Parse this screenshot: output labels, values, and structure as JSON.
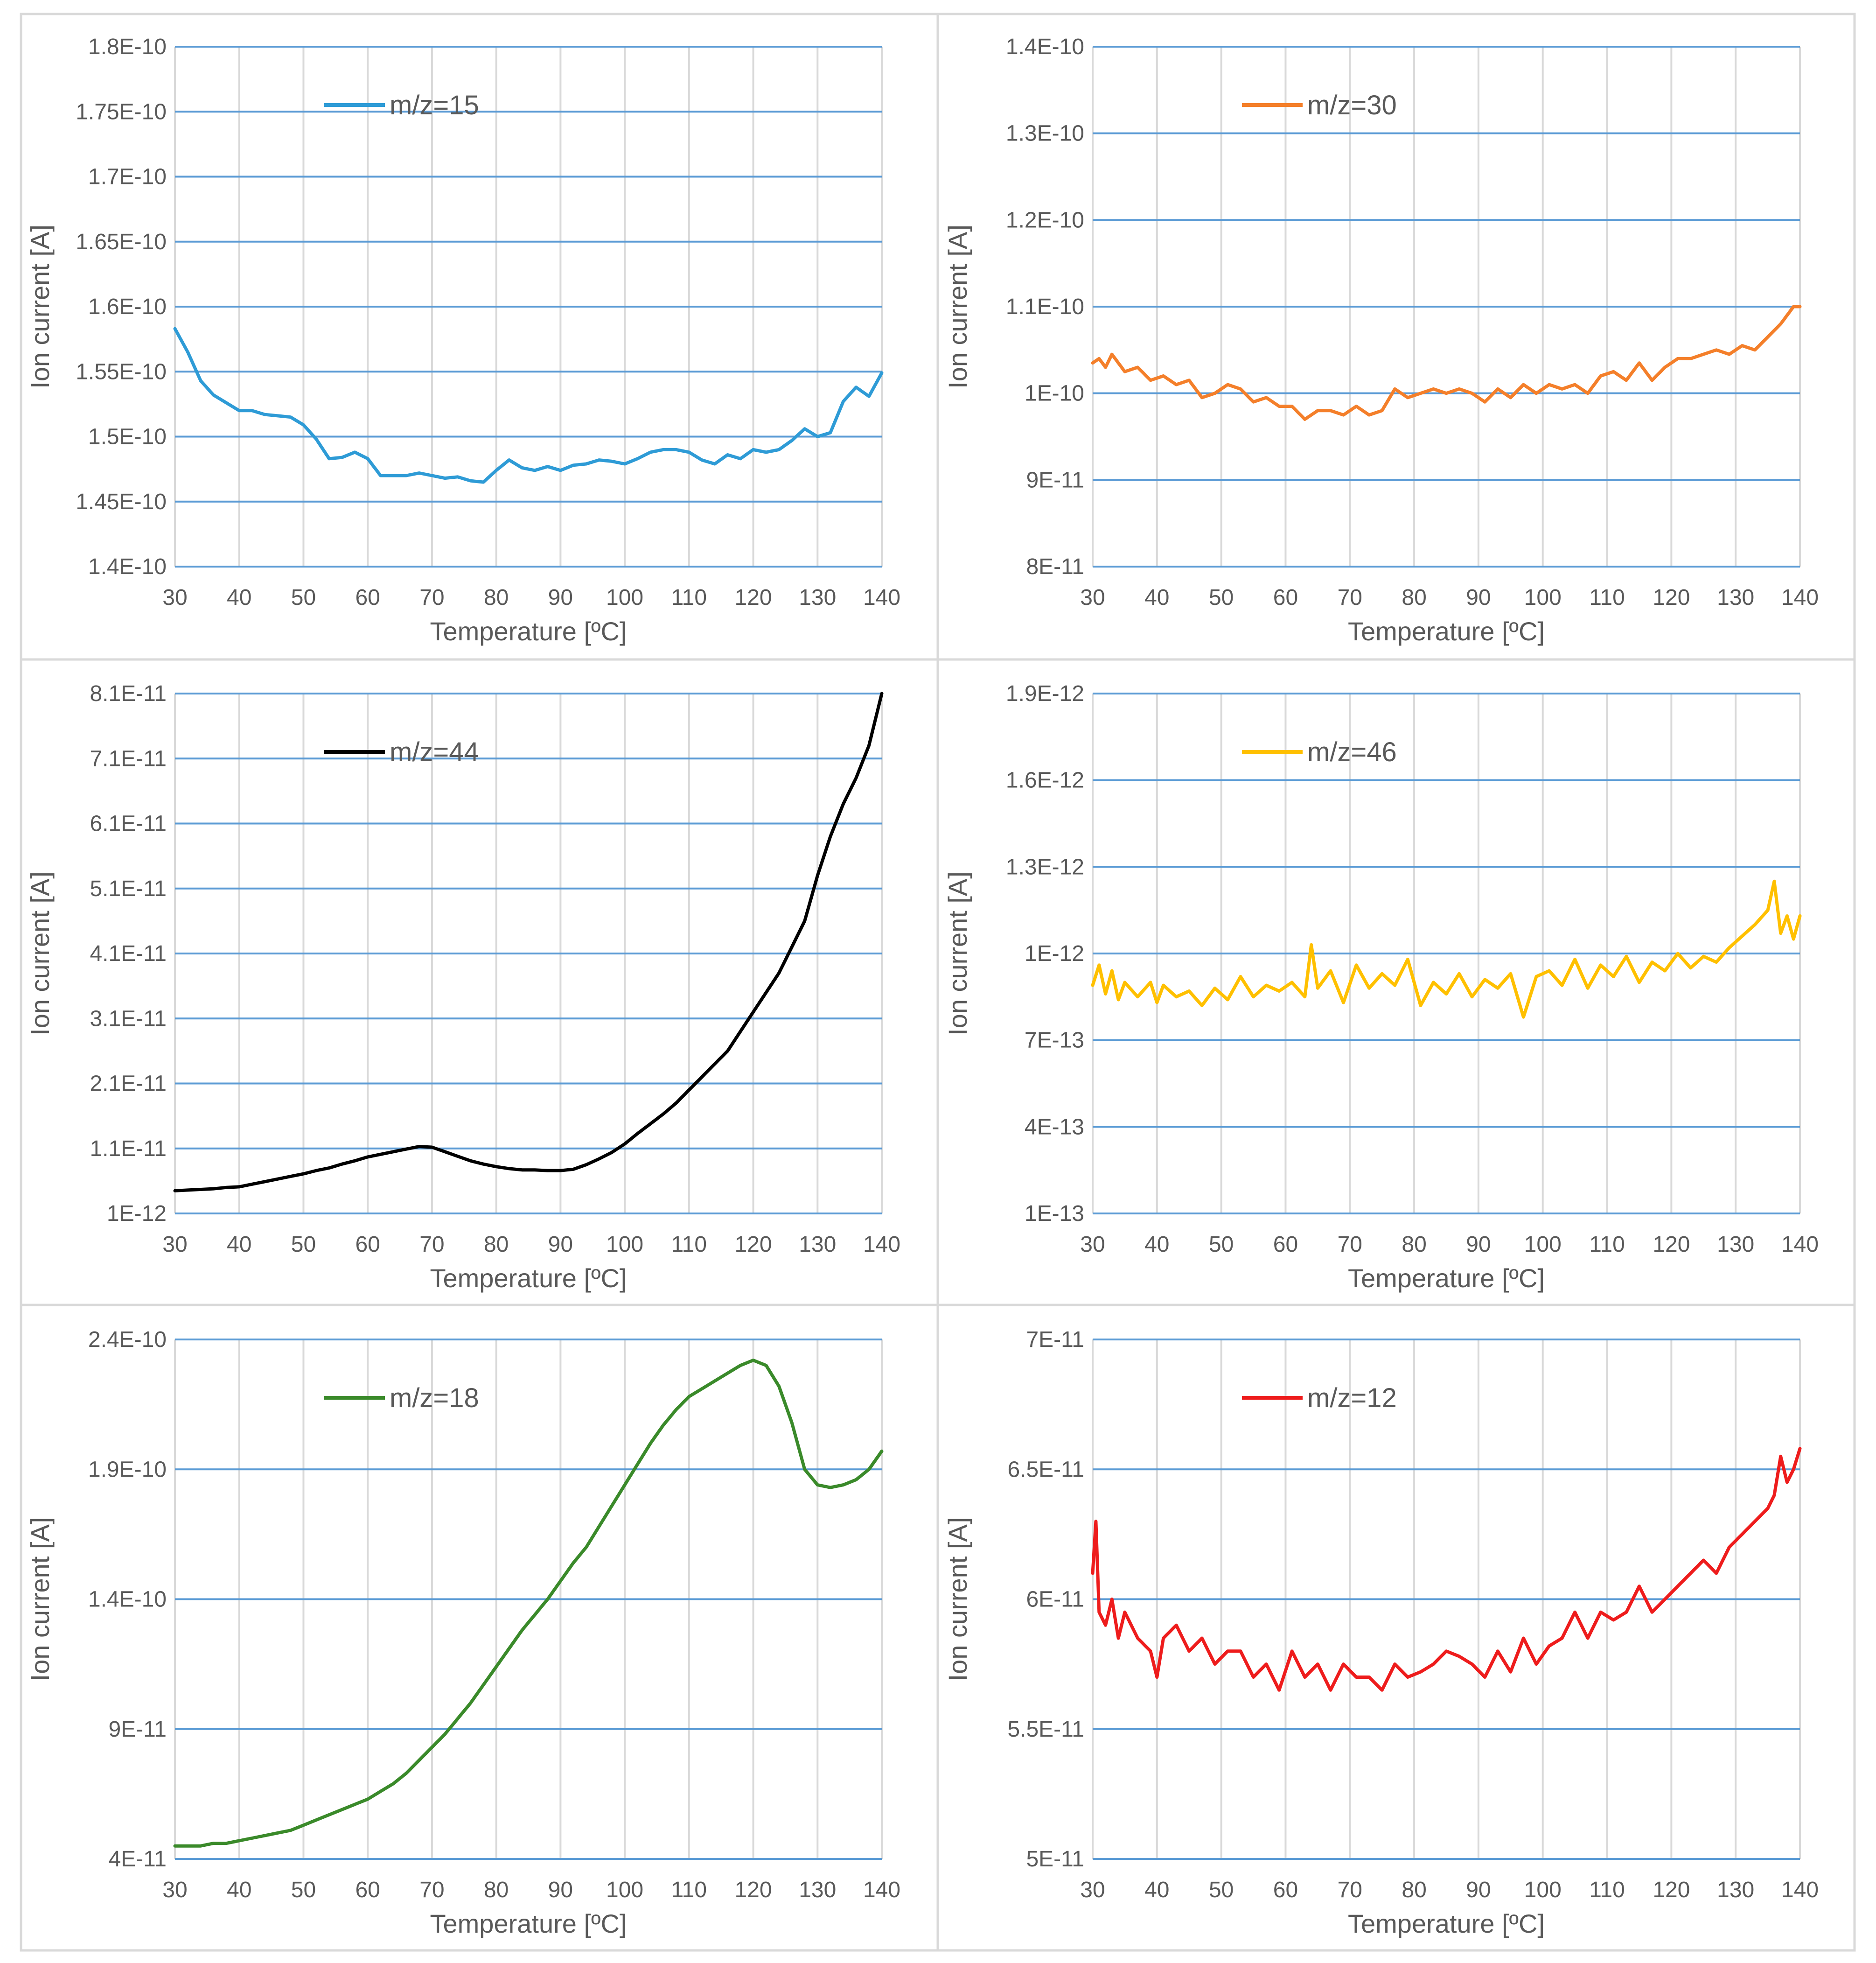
{
  "chart_data": [
    {
      "type": "line",
      "name": "m/z=15",
      "color": "#2e9bd6",
      "xlabel": "Temperature [ºC]",
      "ylabel": "Ion current [A]",
      "xlim": [
        30,
        140
      ],
      "ylim": [
        1.4e-10,
        1.8e-10
      ],
      "yticks": [
        1.4e-10,
        1.45e-10,
        1.5e-10,
        1.55e-10,
        1.6e-10,
        1.65e-10,
        1.7e-10,
        1.75e-10,
        1.8e-10
      ],
      "ytick_labels": [
        "1.4E-10",
        "1.45E-10",
        "1.5E-10",
        "1.55E-10",
        "1.6E-10",
        "1.65E-10",
        "1.7E-10",
        "1.75E-10",
        "1.8E-10"
      ],
      "xticks": [
        30,
        40,
        50,
        60,
        70,
        80,
        90,
        100,
        110,
        120,
        130,
        140
      ],
      "xtick_labels": [
        "30",
        "40",
        "50",
        "60",
        "70",
        "80",
        "90",
        "100",
        "110",
        "120",
        "130",
        "140"
      ],
      "x": [
        30,
        32,
        34,
        36,
        38,
        40,
        42,
        44,
        46,
        48,
        50,
        52,
        54,
        56,
        58,
        60,
        62,
        64,
        66,
        68,
        70,
        72,
        74,
        76,
        78,
        80,
        82,
        84,
        86,
        88,
        90,
        92,
        94,
        96,
        98,
        100,
        102,
        104,
        106,
        108,
        110,
        112,
        114,
        116,
        118,
        120,
        122,
        124,
        126,
        128,
        130,
        132,
        134,
        136,
        138,
        140
      ],
      "y": [
        1.583e-10,
        1.565e-10,
        1.543e-10,
        1.532e-10,
        1.526e-10,
        1.52e-10,
        1.52e-10,
        1.517e-10,
        1.516e-10,
        1.515e-10,
        1.509e-10,
        1.498e-10,
        1.483e-10,
        1.484e-10,
        1.488e-10,
        1.483e-10,
        1.47e-10,
        1.47e-10,
        1.47e-10,
        1.472e-10,
        1.47e-10,
        1.468e-10,
        1.469e-10,
        1.466e-10,
        1.465e-10,
        1.474e-10,
        1.482e-10,
        1.476e-10,
        1.474e-10,
        1.477e-10,
        1.474e-10,
        1.478e-10,
        1.479e-10,
        1.482e-10,
        1.481e-10,
        1.479e-10,
        1.483e-10,
        1.488e-10,
        1.49e-10,
        1.49e-10,
        1.488e-10,
        1.482e-10,
        1.479e-10,
        1.486e-10,
        1.483e-10,
        1.49e-10,
        1.488e-10,
        1.49e-10,
        1.497e-10,
        1.506e-10,
        1.5e-10,
        1.503e-10,
        1.527e-10,
        1.538e-10,
        1.531e-10,
        1.549e-10
      ]
    },
    {
      "type": "line",
      "name": "m/z=30",
      "color": "#f47f2a",
      "xlabel": "Temperature [ºC]",
      "ylabel": "Ion current [A]",
      "xlim": [
        30,
        140
      ],
      "ylim": [
        8e-11,
        1.4e-10
      ],
      "yticks": [
        8e-11,
        9e-11,
        1e-10,
        1.1e-10,
        1.2e-10,
        1.3e-10,
        1.4e-10
      ],
      "ytick_labels": [
        "8E-11",
        "9E-11",
        "1E-10",
        "1.1E-10",
        "1.2E-10",
        "1.3E-10",
        "1.4E-10"
      ],
      "xticks": [
        30,
        40,
        50,
        60,
        70,
        80,
        90,
        100,
        110,
        120,
        130,
        140
      ],
      "xtick_labels": [
        "30",
        "40",
        "50",
        "60",
        "70",
        "80",
        "90",
        "100",
        "110",
        "120",
        "130",
        "140"
      ],
      "x": [
        30,
        31,
        32,
        33,
        35,
        37,
        39,
        41,
        43,
        45,
        47,
        49,
        51,
        53,
        55,
        57,
        59,
        61,
        63,
        65,
        67,
        69,
        71,
        73,
        75,
        77,
        79,
        81,
        83,
        85,
        87,
        89,
        91,
        93,
        95,
        97,
        99,
        101,
        103,
        105,
        107,
        109,
        111,
        113,
        115,
        117,
        119,
        121,
        123,
        125,
        127,
        129,
        131,
        133,
        135,
        137,
        139,
        140
      ],
      "y": [
        1.035e-10,
        1.04e-10,
        1.03e-10,
        1.045e-10,
        1.025e-10,
        1.03e-10,
        1.015e-10,
        1.02e-10,
        1.01e-10,
        1.015e-10,
        9.95e-11,
        1e-10,
        1.01e-10,
        1.005e-10,
        9.9e-11,
        9.95e-11,
        9.85e-11,
        9.85e-11,
        9.7e-11,
        9.8e-11,
        9.8e-11,
        9.75e-11,
        9.85e-11,
        9.75e-11,
        9.8e-11,
        1.005e-10,
        9.95e-11,
        1e-10,
        1.005e-10,
        1e-10,
        1.005e-10,
        1e-10,
        9.9e-11,
        1.005e-10,
        9.95e-11,
        1.01e-10,
        1e-10,
        1.01e-10,
        1.005e-10,
        1.01e-10,
        1e-10,
        1.02e-10,
        1.025e-10,
        1.015e-10,
        1.035e-10,
        1.015e-10,
        1.03e-10,
        1.04e-10,
        1.04e-10,
        1.045e-10,
        1.05e-10,
        1.045e-10,
        1.055e-10,
        1.05e-10,
        1.065e-10,
        1.08e-10,
        1.1e-10,
        1.1e-10
      ]
    },
    {
      "type": "line",
      "name": "m/z=44",
      "color": "#000000",
      "xlabel": "Temperature [ºC]",
      "ylabel": "Ion current [A]",
      "xlim": [
        30,
        140
      ],
      "ylim": [
        1e-12,
        8.1e-11
      ],
      "yticks": [
        1e-12,
        1.1e-11,
        2.1e-11,
        3.1e-11,
        4.1e-11,
        5.1e-11,
        6.1e-11,
        7.1e-11,
        8.1e-11
      ],
      "ytick_labels": [
        "1E-12",
        "1.1E-11",
        "2.1E-11",
        "3.1E-11",
        "4.1E-11",
        "5.1E-11",
        "6.1E-11",
        "7.1E-11",
        "8.1E-11"
      ],
      "xticks": [
        30,
        40,
        50,
        60,
        70,
        80,
        90,
        100,
        110,
        120,
        130,
        140
      ],
      "xtick_labels": [
        "30",
        "40",
        "50",
        "60",
        "70",
        "80",
        "90",
        "100",
        "110",
        "120",
        "130",
        "140"
      ],
      "x": [
        30,
        32,
        34,
        36,
        38,
        40,
        42,
        44,
        46,
        48,
        50,
        52,
        54,
        56,
        58,
        60,
        62,
        64,
        66,
        68,
        70,
        72,
        74,
        76,
        78,
        80,
        82,
        84,
        86,
        88,
        90,
        92,
        94,
        96,
        98,
        100,
        102,
        104,
        106,
        108,
        110,
        112,
        114,
        116,
        118,
        120,
        122,
        124,
        126,
        128,
        130,
        132,
        134,
        136,
        138,
        140
      ],
      "y": [
        4.5e-12,
        4.6e-12,
        4.7e-12,
        4.8e-12,
        5e-12,
        5.1e-12,
        5.5e-12,
        5.9e-12,
        6.3e-12,
        6.7e-12,
        7.1e-12,
        7.6e-12,
        8e-12,
        8.6e-12,
        9.1e-12,
        9.7e-12,
        1.01e-11,
        1.05e-11,
        1.09e-11,
        1.13e-11,
        1.12e-11,
        1.05e-11,
        9.8e-12,
        9.1e-12,
        8.6e-12,
        8.2e-12,
        7.9e-12,
        7.7e-12,
        7.7e-12,
        7.6e-12,
        7.6e-12,
        7.8e-12,
        8.5e-12,
        9.4e-12,
        1.04e-11,
        1.17e-11,
        1.33e-11,
        1.48e-11,
        1.63e-11,
        1.8e-11,
        2e-11,
        2.2e-11,
        2.4e-11,
        2.6e-11,
        2.9e-11,
        3.2e-11,
        3.5e-11,
        3.8e-11,
        4.2e-11,
        4.6e-11,
        5.3e-11,
        5.9e-11,
        6.4e-11,
        6.8e-11,
        7.3e-11,
        8.1e-11
      ]
    },
    {
      "type": "line",
      "name": "m/z=46",
      "color": "#ffc000",
      "xlabel": "Temperature [ºC]",
      "ylabel": "Ion current [A]",
      "xlim": [
        30,
        140
      ],
      "ylim": [
        1e-13,
        1.9e-12
      ],
      "yticks": [
        1e-13,
        4e-13,
        7e-13,
        1e-12,
        1.3e-12,
        1.6e-12,
        1.9e-12
      ],
      "ytick_labels": [
        "1E-13",
        "4E-13",
        "7E-13",
        "1E-12",
        "1.3E-12",
        "1.6E-12",
        "1.9E-12"
      ],
      "xticks": [
        30,
        40,
        50,
        60,
        70,
        80,
        90,
        100,
        110,
        120,
        130,
        140
      ],
      "xtick_labels": [
        "30",
        "40",
        "50",
        "60",
        "70",
        "80",
        "90",
        "100",
        "110",
        "120",
        "130",
        "140"
      ],
      "x": [
        30,
        31,
        32,
        33,
        34,
        35,
        37,
        39,
        40,
        41,
        43,
        45,
        47,
        49,
        51,
        53,
        55,
        57,
        59,
        61,
        63,
        64,
        65,
        67,
        69,
        71,
        73,
        75,
        77,
        79,
        81,
        83,
        85,
        87,
        89,
        91,
        93,
        95,
        97,
        99,
        101,
        103,
        105,
        107,
        109,
        111,
        113,
        115,
        117,
        119,
        121,
        123,
        125,
        127,
        129,
        131,
        133,
        135,
        136,
        137,
        138,
        139,
        140
      ],
      "y": [
        8.9e-13,
        9.6e-13,
        8.6e-13,
        9.4e-13,
        8.4e-13,
        9e-13,
        8.5e-13,
        9e-13,
        8.3e-13,
        8.9e-13,
        8.5e-13,
        8.7e-13,
        8.2e-13,
        8.8e-13,
        8.4e-13,
        9.2e-13,
        8.5e-13,
        8.9e-13,
        8.7e-13,
        9e-13,
        8.5e-13,
        1.03e-12,
        8.8e-13,
        9.4e-13,
        8.3e-13,
        9.6e-13,
        8.8e-13,
        9.3e-13,
        8.9e-13,
        9.8e-13,
        8.2e-13,
        9e-13,
        8.6e-13,
        9.3e-13,
        8.5e-13,
        9.1e-13,
        8.8e-13,
        9.3e-13,
        7.8e-13,
        9.2e-13,
        9.4e-13,
        8.9e-13,
        9.8e-13,
        8.8e-13,
        9.6e-13,
        9.2e-13,
        9.9e-13,
        9e-13,
        9.7e-13,
        9.4e-13,
        1e-12,
        9.5e-13,
        9.9e-13,
        9.7e-13,
        1.02e-12,
        1.06e-12,
        1.1e-12,
        1.15e-12,
        1.25e-12,
        1.07e-12,
        1.13e-12,
        1.05e-12,
        1.13e-12
      ]
    },
    {
      "type": "line",
      "name": "m/z=18",
      "color": "#3a8a2a",
      "xlabel": "Temperature [ºC]",
      "ylabel": "Ion current [A]",
      "xlim": [
        30,
        140
      ],
      "ylim": [
        4e-11,
        2.4e-10
      ],
      "yticks": [
        4e-11,
        9e-11,
        1.4e-10,
        1.9e-10,
        2.4e-10
      ],
      "ytick_labels": [
        "4E-11",
        "9E-11",
        "1.4E-10",
        "1.9E-10",
        "2.4E-10"
      ],
      "xticks": [
        30,
        40,
        50,
        60,
        70,
        80,
        90,
        100,
        110,
        120,
        130,
        140
      ],
      "xtick_labels": [
        "30",
        "40",
        "50",
        "60",
        "70",
        "80",
        "90",
        "100",
        "110",
        "120",
        "130",
        "140"
      ],
      "x": [
        30,
        32,
        34,
        36,
        38,
        40,
        42,
        44,
        46,
        48,
        50,
        52,
        54,
        56,
        58,
        60,
        62,
        64,
        66,
        68,
        70,
        72,
        74,
        76,
        78,
        80,
        82,
        84,
        86,
        88,
        90,
        92,
        94,
        96,
        98,
        100,
        102,
        104,
        106,
        108,
        110,
        112,
        114,
        116,
        118,
        120,
        122,
        124,
        126,
        128,
        130,
        132,
        134,
        136,
        138,
        140
      ],
      "y": [
        4.5e-11,
        4.5e-11,
        4.5e-11,
        4.6e-11,
        4.6e-11,
        4.7e-11,
        4.8e-11,
        4.9e-11,
        5e-11,
        5.1e-11,
        5.3e-11,
        5.5e-11,
        5.7e-11,
        5.9e-11,
        6.1e-11,
        6.3e-11,
        6.6e-11,
        6.9e-11,
        7.3e-11,
        7.8e-11,
        8.3e-11,
        8.8e-11,
        9.4e-11,
        1e-10,
        1.07e-10,
        1.14e-10,
        1.21e-10,
        1.28e-10,
        1.34e-10,
        1.4e-10,
        1.47e-10,
        1.54e-10,
        1.6e-10,
        1.68e-10,
        1.76e-10,
        1.84e-10,
        1.92e-10,
        2e-10,
        2.07e-10,
        2.13e-10,
        2.18e-10,
        2.21e-10,
        2.24e-10,
        2.27e-10,
        2.3e-10,
        2.32e-10,
        2.3e-10,
        2.22e-10,
        2.08e-10,
        1.9e-10,
        1.84e-10,
        1.83e-10,
        1.84e-10,
        1.86e-10,
        1.9e-10,
        1.97e-10
      ]
    },
    {
      "type": "line",
      "name": "m/z=12",
      "color": "#ee1c1c",
      "xlabel": "Temperature [ºC]",
      "ylabel": "Ion current [A]",
      "xlim": [
        30,
        140
      ],
      "ylim": [
        5e-11,
        7e-11
      ],
      "yticks": [
        5e-11,
        5.5e-11,
        6e-11,
        6.5e-11,
        7e-11
      ],
      "ytick_labels": [
        "5E-11",
        "5.5E-11",
        "6E-11",
        "6.5E-11",
        "7E-11"
      ],
      "xticks": [
        30,
        40,
        50,
        60,
        70,
        80,
        90,
        100,
        110,
        120,
        130,
        140
      ],
      "xtick_labels": [
        "30",
        "40",
        "50",
        "60",
        "70",
        "80",
        "90",
        "100",
        "110",
        "120",
        "130",
        "140"
      ],
      "x": [
        30,
        30.5,
        31,
        32,
        33,
        34,
        35,
        37,
        39,
        40,
        41,
        43,
        45,
        47,
        49,
        51,
        53,
        55,
        57,
        59,
        61,
        63,
        65,
        67,
        69,
        71,
        73,
        75,
        77,
        79,
        81,
        83,
        85,
        87,
        89,
        91,
        93,
        95,
        97,
        99,
        101,
        103,
        105,
        107,
        109,
        111,
        113,
        115,
        117,
        119,
        121,
        123,
        125,
        127,
        129,
        131,
        133,
        135,
        136,
        137,
        138,
        139,
        140
      ],
      "y": [
        6.1e-11,
        6.3e-11,
        5.95e-11,
        5.9e-11,
        6e-11,
        5.85e-11,
        5.95e-11,
        5.85e-11,
        5.8e-11,
        5.7e-11,
        5.85e-11,
        5.9e-11,
        5.8e-11,
        5.85e-11,
        5.75e-11,
        5.8e-11,
        5.8e-11,
        5.7e-11,
        5.75e-11,
        5.65e-11,
        5.8e-11,
        5.7e-11,
        5.75e-11,
        5.65e-11,
        5.75e-11,
        5.7e-11,
        5.7e-11,
        5.65e-11,
        5.75e-11,
        5.7e-11,
        5.72e-11,
        5.75e-11,
        5.8e-11,
        5.78e-11,
        5.75e-11,
        5.7e-11,
        5.8e-11,
        5.72e-11,
        5.85e-11,
        5.75e-11,
        5.82e-11,
        5.85e-11,
        5.95e-11,
        5.85e-11,
        5.95e-11,
        5.92e-11,
        5.95e-11,
        6.05e-11,
        5.95e-11,
        6e-11,
        6.05e-11,
        6.1e-11,
        6.15e-11,
        6.1e-11,
        6.2e-11,
        6.25e-11,
        6.3e-11,
        6.35e-11,
        6.4e-11,
        6.55e-11,
        6.45e-11,
        6.5e-11,
        6.58e-11
      ]
    }
  ]
}
